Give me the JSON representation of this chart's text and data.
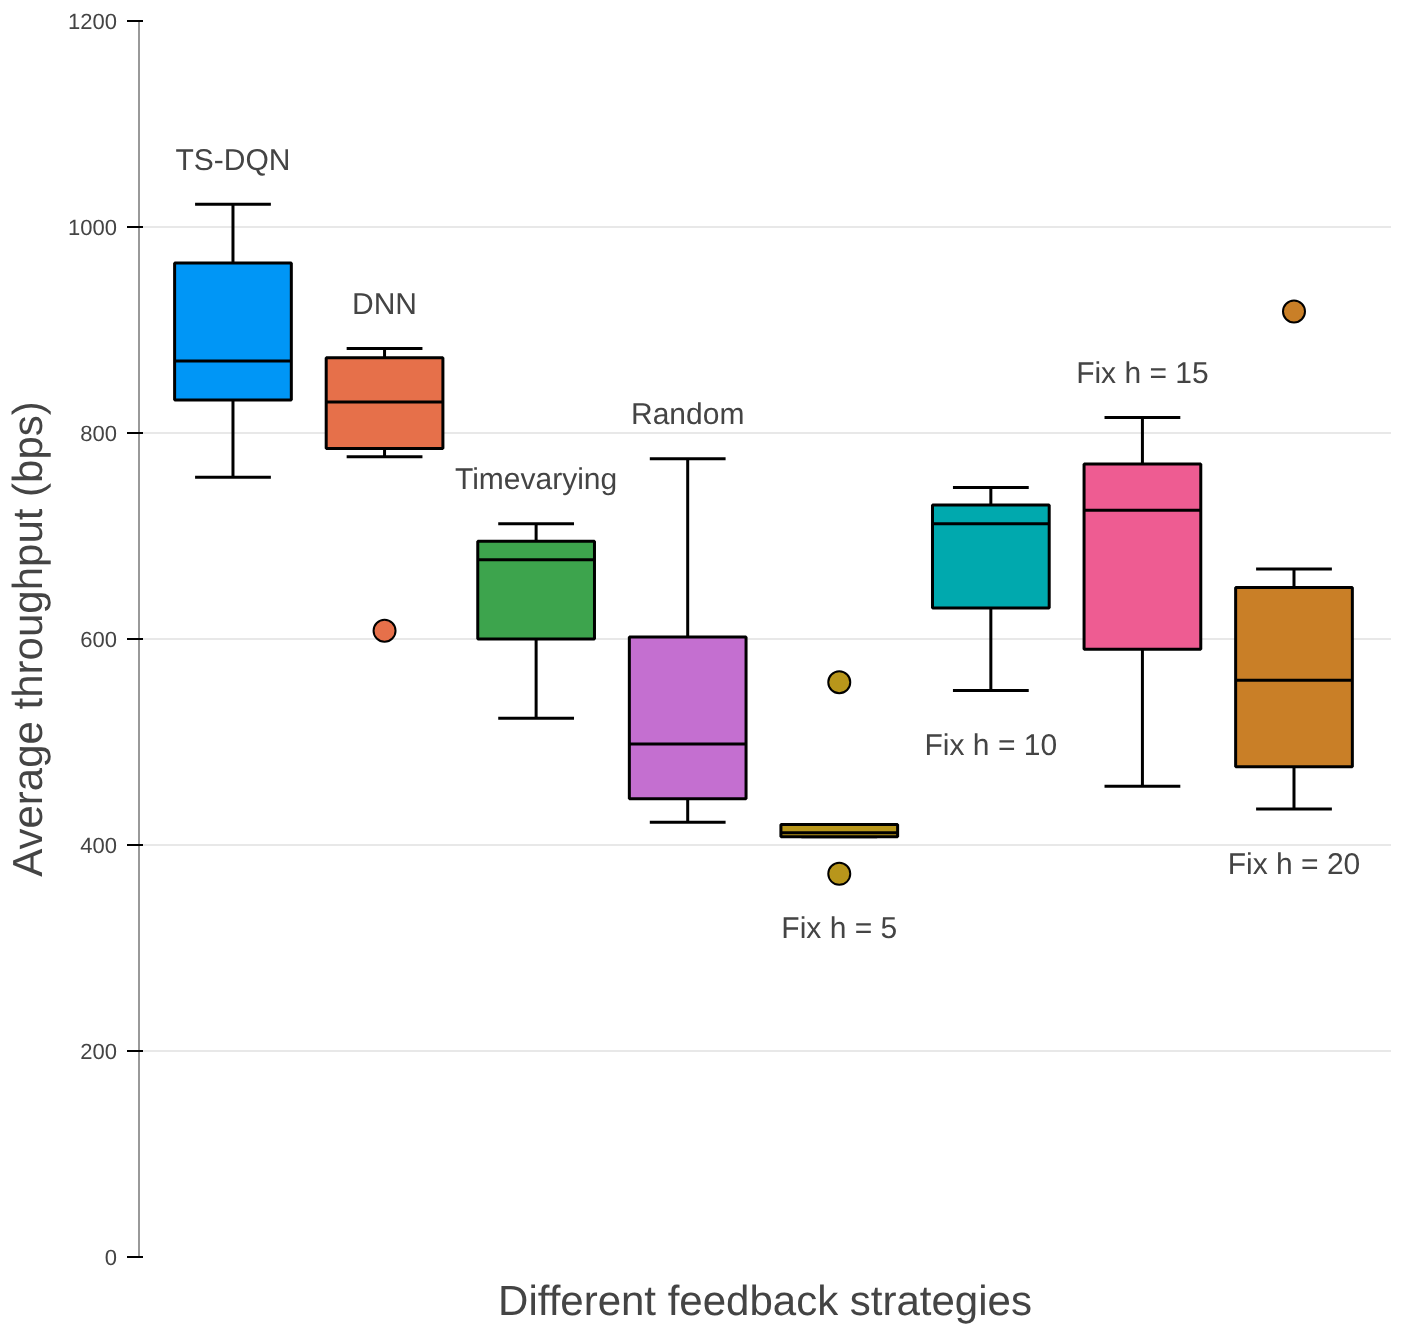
{
  "chart_data": {
    "type": "box",
    "ylabel": "Average throughput (bps)",
    "xlabel": "Different feedback strategies",
    "categories": [
      null,
      null,
      null,
      null,
      null,
      null,
      null,
      null
    ],
    "colors": [
      "#0096f6",
      "#e6704a",
      "#3da44d",
      "#c46fd0",
      "#b8961b",
      "#00a9ae",
      "#ee5c92",
      "#c97f27"
    ],
    "boxes": [
      {
        "low": 757,
        "q1": 832,
        "median": 870,
        "q3": 965,
        "high": 1022
      },
      {
        "low": 777,
        "q1": 785,
        "median": 830,
        "q3": 873,
        "high": 882,
        "outliers": [
          608
        ]
      },
      {
        "low": 523,
        "q1": 600,
        "median": 677,
        "q3": 695,
        "high": 712
      },
      {
        "low": 422,
        "q1": 445,
        "median": 498,
        "q3": 602,
        "high": 775
      },
      {
        "low": 408,
        "q1": 408,
        "median": 412,
        "q3": 420,
        "high": 420,
        "outliers": [
          558,
          372
        ]
      },
      {
        "low": 550,
        "q1": 630,
        "median": 712,
        "q3": 730,
        "high": 747
      },
      {
        "low": 457,
        "q1": 590,
        "median": 725,
        "q3": 770,
        "high": 815
      },
      {
        "low": 435,
        "q1": 476,
        "median": 560,
        "q3": 650,
        "high": 668,
        "outliers": [
          918
        ]
      }
    ],
    "annotations": [
      "TS-DQN",
      "DNN",
      "Timevarying",
      "Random",
      "Fix h = 5",
      "Fix h = 10",
      "Fix h = 15",
      "Fix h = 20"
    ],
    "ylim": [
      0,
      1200
    ],
    "yticks": [
      0,
      200,
      400,
      600,
      800,
      1000,
      1200
    ],
    "grid": "y",
    "tick_labels": "y"
  }
}
